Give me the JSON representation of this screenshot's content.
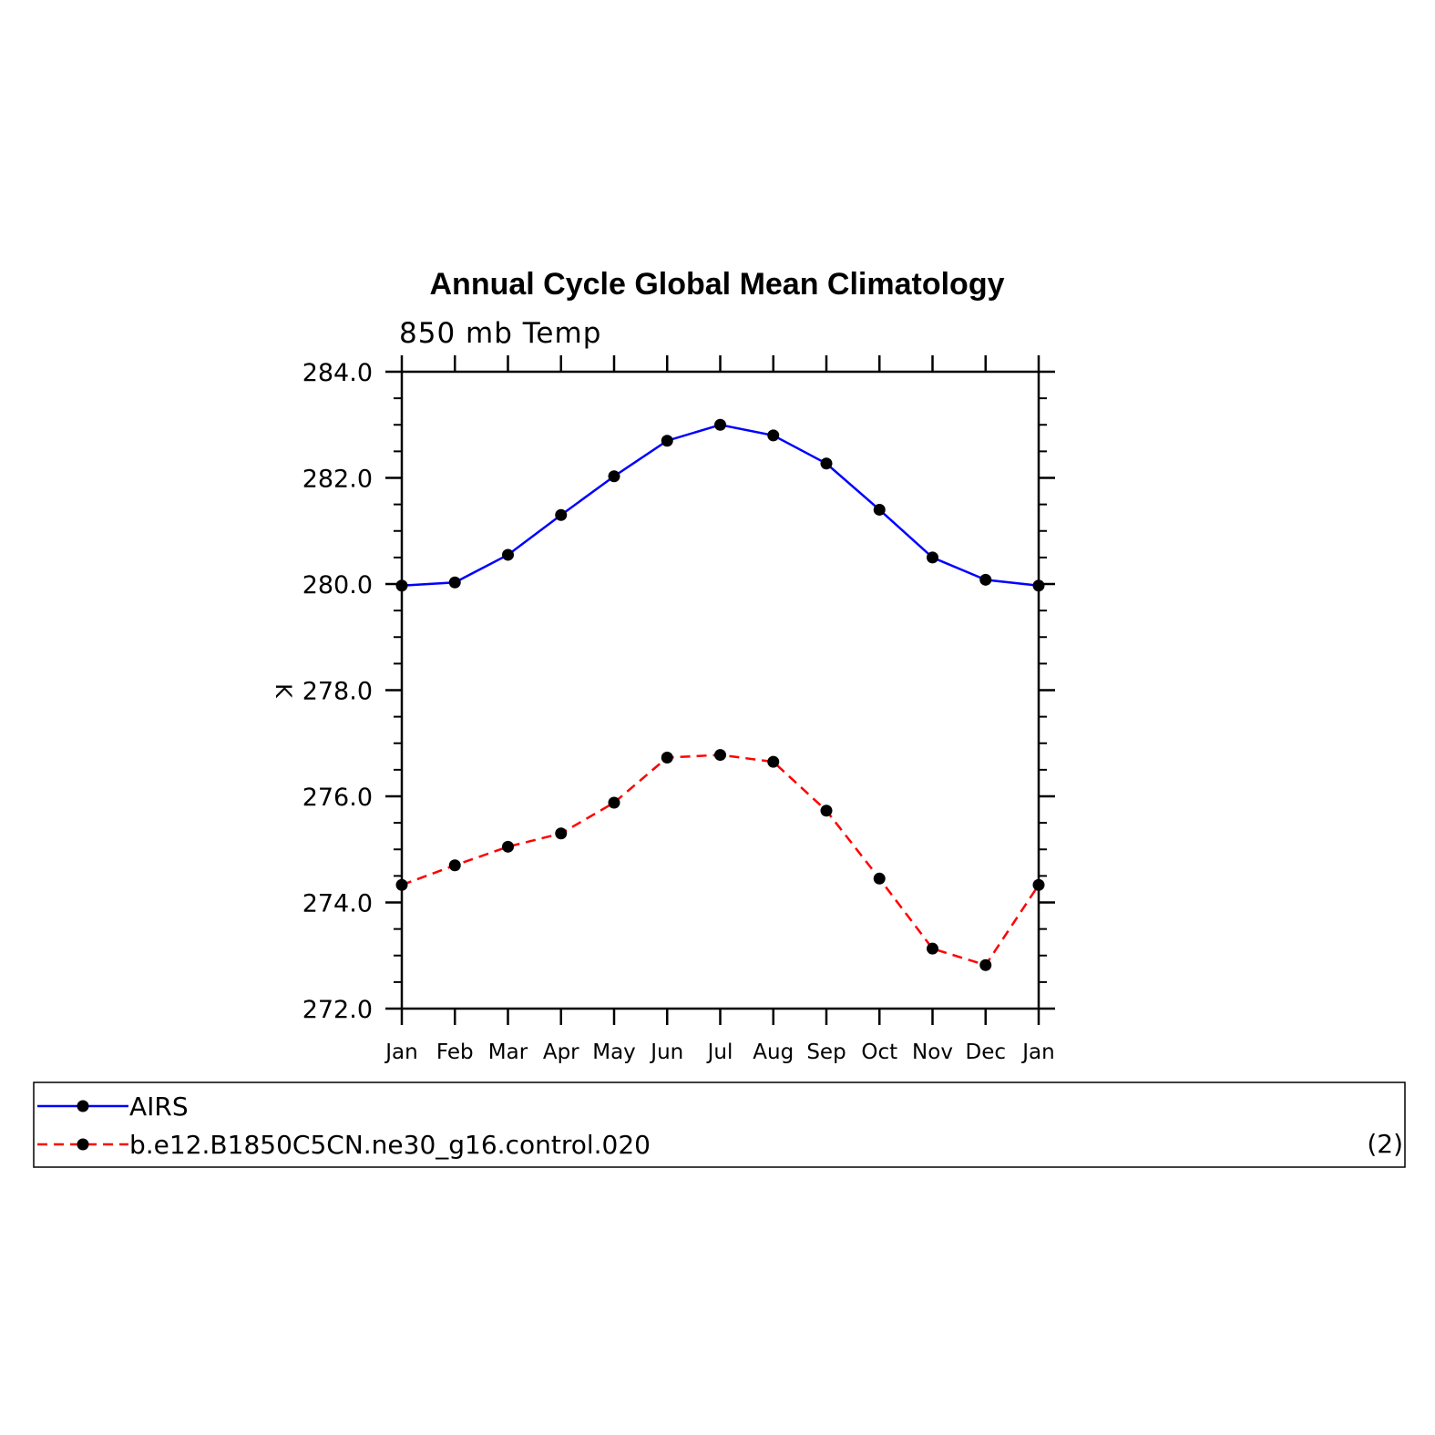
{
  "chart_data": {
    "type": "line",
    "title": "Annual Cycle Global Mean Climatology",
    "subtitle": "850 mb Temp",
    "ylabel": "K",
    "xlabel": "",
    "categories": [
      "Jan",
      "Feb",
      "Mar",
      "Apr",
      "May",
      "Jun",
      "Jul",
      "Aug",
      "Sep",
      "Oct",
      "Nov",
      "Dec",
      "Jan"
    ],
    "ylim": [
      272.0,
      284.0
    ],
    "yticks": [
      "272.0",
      "274.0",
      "276.0",
      "278.0",
      "280.0",
      "282.0",
      "284.0"
    ],
    "grid": false,
    "legend_position": "bottom",
    "series": [
      {
        "name": "AIRS",
        "color": "#0000ff",
        "dash": "solid",
        "values": [
          279.97,
          280.03,
          280.55,
          281.3,
          282.03,
          282.7,
          283.0,
          282.8,
          282.27,
          281.4,
          280.5,
          280.08,
          279.97
        ]
      },
      {
        "name": "b.e12.B1850C5CN.ne30_g16.control.020",
        "color": "#ff0000",
        "dash": "dashed",
        "values": [
          274.33,
          274.7,
          275.05,
          275.3,
          275.88,
          276.73,
          276.78,
          276.65,
          275.73,
          274.45,
          273.13,
          272.82,
          274.33
        ]
      }
    ],
    "panel_label": "(2)"
  }
}
